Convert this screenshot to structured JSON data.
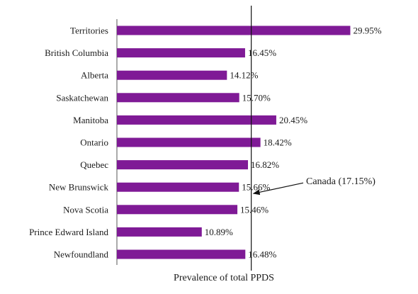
{
  "chart_data": {
    "type": "bar",
    "orientation": "horizontal",
    "categories": [
      "Territories",
      "British Columbia",
      "Alberta",
      "Saskatchewan",
      "Manitoba",
      "Ontario",
      "Quebec",
      "New Brunswick",
      "Nova Scotia",
      "Prince Edward Island",
      "Newfoundland"
    ],
    "values": [
      29.95,
      16.45,
      14.12,
      15.7,
      20.45,
      18.42,
      16.82,
      15.66,
      15.46,
      10.89,
      16.48
    ],
    "data_labels": [
      "29.95%",
      "16.45%",
      "14.12%",
      "15.70%",
      "20.45%",
      "18.42%",
      "16.82%",
      "15.66%",
      "15.46%",
      "10.89%",
      "16.48%"
    ],
    "xlabel": "Prevalence of total PPDS",
    "xlim": [
      0,
      35
    ],
    "reference_line": {
      "value": 17.15,
      "label": "Canada (17.15%)"
    },
    "bar_color": "#7f1a96",
    "grid": false,
    "legend": "none"
  }
}
